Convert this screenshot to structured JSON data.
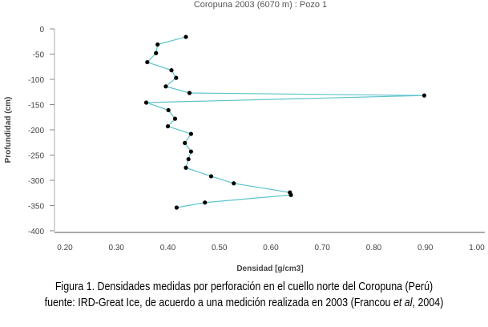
{
  "chart_data": {
    "type": "line",
    "title": "Coropuna 2003 (6070 m) :  Pozo 1",
    "xlabel": "Densidad [g/cm3]",
    "ylabel": "Profundidad (cm)",
    "xlim": [
      0.2,
      1.0
    ],
    "ylim": [
      -400,
      0
    ],
    "xticks": [
      "0.20",
      "0.30",
      "0.40",
      "0.50",
      "0.60",
      "0.70",
      "0.80",
      "0.90",
      "1.00"
    ],
    "yticks": [
      "0",
      "-50",
      "-100",
      "-150",
      "-200",
      "-250",
      "-300",
      "-350",
      "-400"
    ],
    "grid": false,
    "line_color": "#5bc3cc",
    "marker_color": "#000000",
    "points": [
      {
        "x": 0.435,
        "y": -16
      },
      {
        "x": 0.38,
        "y": -31
      },
      {
        "x": 0.377,
        "y": -48
      },
      {
        "x": 0.36,
        "y": -66
      },
      {
        "x": 0.407,
        "y": -82
      },
      {
        "x": 0.416,
        "y": -97
      },
      {
        "x": 0.396,
        "y": -114
      },
      {
        "x": 0.442,
        "y": -127
      },
      {
        "x": 0.898,
        "y": -132
      },
      {
        "x": 0.358,
        "y": -146
      },
      {
        "x": 0.401,
        "y": -161
      },
      {
        "x": 0.414,
        "y": -178
      },
      {
        "x": 0.4,
        "y": -193
      },
      {
        "x": 0.445,
        "y": -208
      },
      {
        "x": 0.433,
        "y": -226
      },
      {
        "x": 0.445,
        "y": -243
      },
      {
        "x": 0.44,
        "y": -258
      },
      {
        "x": 0.435,
        "y": -275
      },
      {
        "x": 0.484,
        "y": -292
      },
      {
        "x": 0.528,
        "y": -306
      },
      {
        "x": 0.637,
        "y": -324
      },
      {
        "x": 0.639,
        "y": -329
      },
      {
        "x": 0.472,
        "y": -344
      },
      {
        "x": 0.417,
        "y": -354
      }
    ]
  },
  "caption": {
    "line1": "Figura 1. Densidades medidas por perforación en el cuello norte del Coropuna (Perú)",
    "line2_prefix": "fuente: IRD-Great Ice, de acuerdo a una medición realizada en 2003 (Francou ",
    "line2_italic": "et al",
    "line2_suffix": ", 2004)"
  }
}
